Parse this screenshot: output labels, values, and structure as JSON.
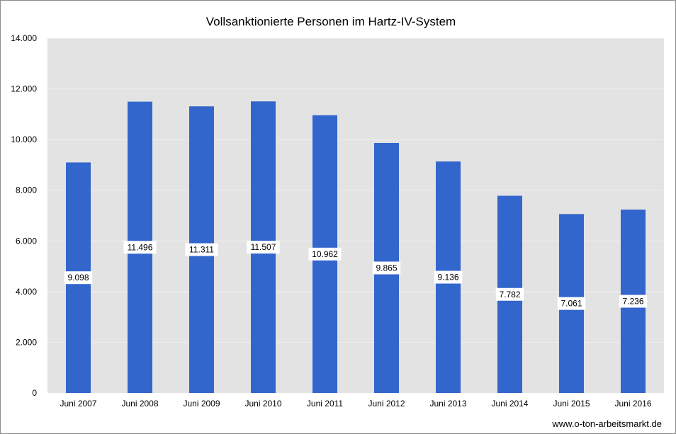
{
  "chart_data": {
    "type": "bar",
    "title": "Vollsanktionierte Personen im Hartz-IV-System",
    "categories": [
      "Juni 2007",
      "Juni 2008",
      "Juni 2009",
      "Juni 2010",
      "Juni 2011",
      "Juni 2012",
      "Juni 2013",
      "Juni 2014",
      "Juni 2015",
      "Juni 2016"
    ],
    "values": [
      9098,
      11496,
      11311,
      11507,
      10962,
      9865,
      9136,
      7782,
      7061,
      7236
    ],
    "value_labels": [
      "9.098",
      "11.496",
      "11.311",
      "11.507",
      "10.962",
      "9.865",
      "9.136",
      "7.782",
      "7.061",
      "7.236"
    ],
    "y_ticks": [
      0,
      2000,
      4000,
      6000,
      8000,
      10000,
      12000,
      14000
    ],
    "y_tick_labels": [
      "0",
      "2.000",
      "4.000",
      "6.000",
      "8.000",
      "10.000",
      "12.000",
      "14.000"
    ],
    "ylim": [
      0,
      14000
    ],
    "xlabel": "",
    "ylabel": "",
    "grid": true,
    "legend": false
  },
  "colors": {
    "bar": "#3366cc",
    "plot_background": "#e3e3e3",
    "gridline": "#f0f0f0",
    "label_background": "#ffffff"
  },
  "source": "www.o-ton-arbeitsmarkt.de"
}
